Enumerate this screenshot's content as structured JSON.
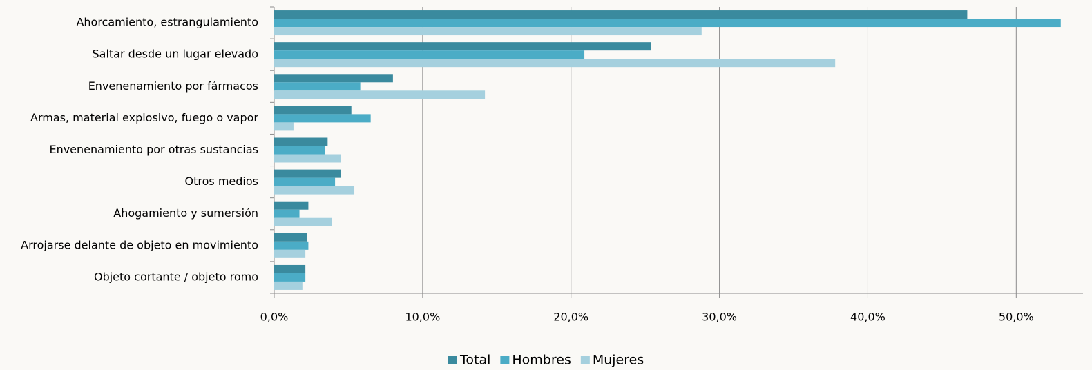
{
  "chart_data": {
    "type": "hbar",
    "categories": [
      "Ahorcamiento, estrangulamiento",
      "Saltar desde un lugar elevado",
      "Envenenamiento por fármacos",
      "Armas, material explosivo, fuego o vapor",
      "Envenenamiento por otras sustancias",
      "Otros medios",
      "Ahogamiento y sumersión",
      "Arrojarse delante de objeto en movimiento",
      "Objeto cortante / objeto romo"
    ],
    "series": [
      {
        "name": "Total",
        "color": "#3a8a9e",
        "values": [
          46.7,
          25.4,
          8.0,
          5.2,
          3.6,
          4.5,
          2.3,
          2.2,
          2.1
        ]
      },
      {
        "name": "Hombres",
        "color": "#4bacc6",
        "values": [
          53.0,
          20.9,
          5.8,
          6.5,
          3.4,
          4.1,
          1.7,
          2.3,
          2.1
        ]
      },
      {
        "name": "Mujeres",
        "color": "#a5d0de",
        "values": [
          28.8,
          37.8,
          14.2,
          1.3,
          4.5,
          5.4,
          3.9,
          2.1,
          1.9
        ]
      }
    ],
    "xlim": [
      0,
      54.5
    ],
    "xticks": [
      {
        "value": 0,
        "label": "0,0%"
      },
      {
        "value": 10,
        "label": "10,0%"
      },
      {
        "value": 20,
        "label": "20,0%"
      },
      {
        "value": 30,
        "label": "30,0%"
      },
      {
        "value": 40,
        "label": "40,0%"
      },
      {
        "value": 50,
        "label": "50,0%"
      }
    ],
    "grid": true,
    "legend": "bottom"
  }
}
